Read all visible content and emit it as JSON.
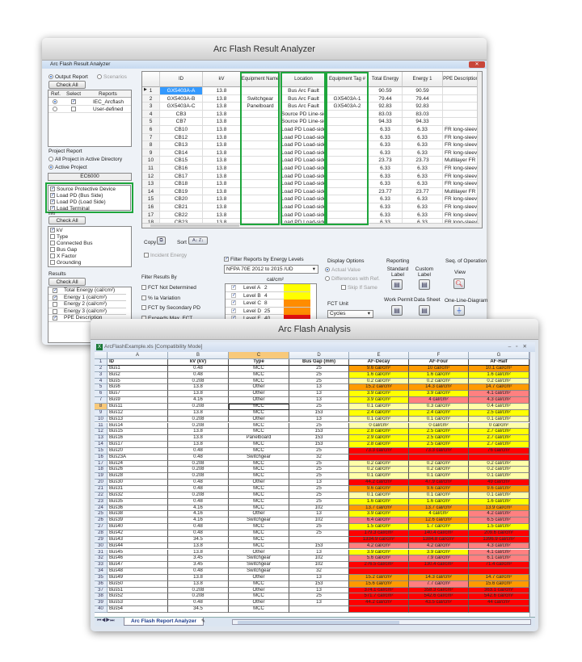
{
  "analyzer": {
    "outer_title": "Arc Flash Result Analyzer",
    "inner_title": "Arc Flash Result Analyzer",
    "output_report": "Output Report",
    "scenarios": "Scenarios",
    "check_all": "Check All",
    "reports_headers": [
      "Ref.",
      "Select",
      "Reports"
    ],
    "reports": [
      {
        "name": "IEC_Arcflash",
        "ref": true,
        "select": true
      },
      {
        "name": "User-defined",
        "ref": false,
        "select": false
      }
    ],
    "project_report": "Project Report",
    "all_project": "All Project in Active Directory",
    "active_project": "Active Project",
    "project_name": "EC6000",
    "locations": [
      "Source Protective Device",
      "Load PD (Bus Side)",
      "Load PD (Load Side)",
      "Load Terminal"
    ],
    "info_label": "Info",
    "info_items": [
      {
        "label": "kV",
        "checked": true
      },
      {
        "label": "Type",
        "checked": false
      },
      {
        "label": "Connected Bus",
        "checked": false
      },
      {
        "label": "Bus Gap",
        "checked": false
      },
      {
        "label": "X Factor",
        "checked": false
      },
      {
        "label": "Grounding",
        "checked": false
      }
    ],
    "results_label": "Results",
    "results_items": [
      {
        "label": "Total Energy (cal/cm²)",
        "checked": true
      },
      {
        "label": "Energy 1 (cal/cm²)",
        "checked": true
      },
      {
        "label": "Energy 2 (cal/cm²)",
        "checked": false
      },
      {
        "label": "Energy 3 (cal/cm²)",
        "checked": false
      },
      {
        "label": "PPE Description",
        "checked": true
      }
    ],
    "grid_headers": [
      "ID",
      "kV",
      "Equipment Name",
      "Location",
      "Equipment Tag #",
      "Total Energy",
      "Energy 1",
      "PPE Description"
    ],
    "grid_rows": [
      [
        "1",
        "GX5403A-A",
        "13.8",
        "",
        "Bus Arc Fault",
        "",
        "90.59",
        "90.59",
        ""
      ],
      [
        "2",
        "GX5403A-B",
        "13.8",
        "Switchgear",
        "Bus Arc Fault",
        "GX5403A-1",
        "79.44",
        "79.44",
        ""
      ],
      [
        "3",
        "GX5403A-C",
        "13.8",
        "Panelboard",
        "Bus Arc Fault",
        "GX5403A-2",
        "92.83",
        "92.83",
        ""
      ],
      [
        "4",
        "CB3",
        "13.8",
        "",
        "Source PD Line-side",
        "",
        "83.03",
        "83.03",
        ""
      ],
      [
        "5",
        "CB7",
        "13.8",
        "",
        "Source PD Line-side",
        "",
        "94.33",
        "94.33",
        ""
      ],
      [
        "6",
        "CB10",
        "13.8",
        "",
        "Load PD Load-side",
        "",
        "6.33",
        "6.33",
        "FR long-sleeve"
      ],
      [
        "7",
        "CB12",
        "13.8",
        "",
        "Load PD Load-side",
        "",
        "6.33",
        "6.33",
        "FR long-sleeve"
      ],
      [
        "8",
        "CB13",
        "13.8",
        "",
        "Load PD Load-side",
        "",
        "6.33",
        "6.33",
        "FR long-sleeve"
      ],
      [
        "9",
        "CB14",
        "13.8",
        "",
        "Load PD Load-side",
        "",
        "6.33",
        "6.33",
        "FR long-sleeve"
      ],
      [
        "10",
        "CB15",
        "13.8",
        "",
        "Load PD Load-side",
        "",
        "23.73",
        "23.73",
        "Multilayer FR fl."
      ],
      [
        "11",
        "CB16",
        "13.8",
        "",
        "Load PD Load-side",
        "",
        "6.33",
        "6.33",
        "FR long-sleeve"
      ],
      [
        "12",
        "CB17",
        "13.8",
        "",
        "Load PD Load-side",
        "",
        "6.33",
        "6.33",
        "FR long-sleeve"
      ],
      [
        "13",
        "CB18",
        "13.8",
        "",
        "Load PD Load-side",
        "",
        "6.33",
        "6.33",
        "FR long-sleeve"
      ],
      [
        "14",
        "CB19",
        "13.8",
        "",
        "Load PD Load-side",
        "",
        "23.77",
        "23.77",
        "Multilayer FR fl."
      ],
      [
        "15",
        "CB20",
        "13.8",
        "",
        "Load PD Load-side",
        "",
        "6.33",
        "6.33",
        "FR long-sleeve"
      ],
      [
        "16",
        "CB21",
        "13.8",
        "",
        "Load PD Load-side",
        "",
        "6.33",
        "6.33",
        "FR long-sleeve"
      ],
      [
        "17",
        "CB22",
        "13.8",
        "",
        "Load PD Load-side",
        "",
        "6.33",
        "6.33",
        "FR long-sleeve"
      ],
      [
        "18",
        "CB23",
        "13.8",
        "",
        "Load PD Load-side",
        "",
        "6.33",
        "6.33",
        "FR long-sleeve"
      ]
    ],
    "copy": "Copy",
    "sort": "Sort",
    "incident_energy": "Incident Energy",
    "filter_results_by": "Filter Results By",
    "filters": [
      "FCT Not Determined",
      "% Ia Variation",
      "FCT by Secondary PD",
      "Exceeds Max. FCT"
    ],
    "filter_energy": "Filter Reports by Energy Levels",
    "energy_standard": "NFPA 70E 2012 to 2015 /UD",
    "energy_unit": "cal/cm²",
    "levels": [
      {
        "name": "Level A",
        "value": "2",
        "color": "#ffff00"
      },
      {
        "name": "Level B",
        "value": "4",
        "color": "#ffff00"
      },
      {
        "name": "Level C",
        "value": "8",
        "color": "#ff8c00"
      },
      {
        "name": "Level D",
        "value": "25",
        "color": "#ff8c00"
      },
      {
        "name": "Level E",
        "value": "40",
        "color": "#ee1111"
      }
    ],
    "display_options": "Display Options",
    "actual_value": "Actual Value",
    "diff_ref": "Differences with Ref.",
    "skip_same": "Skip If Same",
    "fct_unit": "FCT Unit",
    "fct_value": "Cycles",
    "reporting": "Reporting",
    "standard_label": "Standard Label",
    "custom_label": "Custom Label",
    "work_permit": "Work Permit",
    "data_sheet": "Data Sheet",
    "seq_op": "Seq. of Operation",
    "view": "View",
    "one_line": "One-Line-Diagram"
  },
  "analysis": {
    "outer_title": "Arc Flash Analysis",
    "file_title": "ArcFlashExample.xls  [Compatibility Mode]",
    "columns": [
      "A",
      "B",
      "C",
      "D",
      "E",
      "F",
      "G"
    ],
    "headers": [
      "ID",
      "kV (kV)",
      "Type",
      "Bus Gap (mm)",
      "AF-Decay",
      "AF-Four",
      "AF-Half"
    ],
    "sheet_tab": "Arc Flash Report Analyzer",
    "rows": [
      [
        "Bus1",
        "0.48",
        "MCC",
        "25",
        "9.6 cal/cm²",
        "10 cal/cm²",
        "10.1 cal/cm²",
        "ooo"
      ],
      [
        "Bus2",
        "0.48",
        "MCC",
        "25",
        "1.6 cal/cm²",
        "1.6 cal/cm²",
        "1.6 cal/cm²",
        "yyy"
      ],
      [
        "Bus5",
        "0.208",
        "MCC",
        "25",
        "0.2 cal/cm²",
        "0.2 cal/cm²",
        "0.2 cal/cm²",
        "ppp"
      ],
      [
        "Bus6",
        "13.8",
        "Other",
        "13",
        "15.2 cal/cm²",
        "14.3 cal/cm²",
        "14.7 cal/cm²",
        "ooo"
      ],
      [
        "Bus7",
        "13.8",
        "Other",
        "13",
        "3.9 cal/cm²",
        "3.9 cal/cm²",
        "4.1 cal/cm²",
        "yyk"
      ],
      [
        "Bus9",
        "4.16",
        "Other",
        "13",
        "3.9 cal/cm²",
        "4 cal/cm²",
        "4.3 cal/cm²",
        "ykk"
      ],
      [
        "Bus11",
        "0.208",
        "MCC",
        "25",
        "0.1 cal/cm²",
        "0.3 cal/cm²",
        "0.4 cal/cm²",
        "ppp"
      ],
      [
        "Bus12",
        "13.8",
        "MCC",
        "153",
        "2.4 cal/cm²",
        "2.4 cal/cm²",
        "2.5 cal/cm²",
        "yyy"
      ],
      [
        "Bus13",
        "0.208",
        "Other",
        "13",
        "0.1 cal/cm²",
        "0.1 cal/cm²",
        "0.1 cal/cm²",
        "ppp"
      ],
      [
        "Bus14",
        "0.208",
        "MCC",
        "25",
        "0 cal/cm²",
        "0 cal/cm²",
        "0 cal/cm²",
        "ppp"
      ],
      [
        "Bus15",
        "13.8",
        "MCC",
        "153",
        "2.8 cal/cm²",
        "2.5 cal/cm²",
        "2.7 cal/cm²",
        "yyy"
      ],
      [
        "Bus16",
        "13.8",
        "Panelboard",
        "153",
        "2.9 cal/cm²",
        "2.5 cal/cm²",
        "2.7 cal/cm²",
        "yyy"
      ],
      [
        "Bus17",
        "13.8",
        "MCC",
        "153",
        "2.8 cal/cm²",
        "2.5 cal/cm²",
        "2.7 cal/cm²",
        "yyy"
      ],
      [
        "Bus20",
        "0.48",
        "MCC",
        "25",
        "73.3 cal/cm²",
        "73.3 cal/cm²",
        "76 cal/cm²",
        "rrr"
      ],
      [
        "Bus23A",
        "0.48",
        "Switchgear",
        "32",
        "",
        "",
        "",
        "rrr"
      ],
      [
        "Bus24",
        "0.208",
        "MCC",
        "25",
        "0.2 cal/cm²",
        "0.2 cal/cm²",
        "0.2 cal/cm²",
        "ppp"
      ],
      [
        "Bus26",
        "0.208",
        "MCC",
        "25",
        "0.2 cal/cm²",
        "0.2 cal/cm²",
        "0.2 cal/cm²",
        "ppp"
      ],
      [
        "Bus28",
        "0.208",
        "MCC",
        "25",
        "0.1 cal/cm²",
        "0.1 cal/cm²",
        "0.1 cal/cm²",
        "ppp"
      ],
      [
        "Bus30",
        "0.48",
        "Other",
        "13",
        "44.2 cal/cm²",
        "47.9 cal/cm²",
        "49 cal/cm²",
        "rrr"
      ],
      [
        "Bus31",
        "0.48",
        "MCC",
        "25",
        "9.6 cal/cm²",
        "9.6 cal/cm²",
        "9.6 cal/cm²",
        "ooo"
      ],
      [
        "Bus32",
        "0.208",
        "MCC",
        "25",
        "0.1 cal/cm²",
        "0.1 cal/cm²",
        "0.1 cal/cm²",
        "ppp"
      ],
      [
        "Bus35",
        "0.48",
        "MCC",
        "25",
        "1.6 cal/cm²",
        "1.6 cal/cm²",
        "1.6 cal/cm²",
        "yyy"
      ],
      [
        "Bus36",
        "4.16",
        "MCC",
        "102",
        "13.7 cal/cm²",
        "13.7 cal/cm²",
        "13.9 cal/cm²",
        "ooo"
      ],
      [
        "Bus38",
        "4.16",
        "Other",
        "13",
        "3.9 cal/cm²",
        "4 cal/cm²",
        "4.2 cal/cm²",
        "yyk"
      ],
      [
        "Bus39",
        "4.16",
        "Switchgear",
        "102",
        "6.4 cal/cm²",
        "12.6 cal/cm²",
        "6.5 cal/cm²",
        "kok"
      ],
      [
        "Bus40",
        "0.48",
        "MCC",
        "25",
        "1.5 cal/cm²",
        "1.7 cal/cm²",
        "1.5 cal/cm²",
        "yyy"
      ],
      [
        "Bus42",
        "0.48",
        "MCC",
        "25",
        "179.3 cal/cm²",
        "140.4 cal/cm²",
        "209.6 cal/cm²",
        "rrr"
      ],
      [
        "Bus43",
        "34.5",
        "MCC",
        "",
        "1334.9 cal/cm²",
        "1384.8 cal/cm²",
        "1396.9 cal/cm²",
        "rrr"
      ],
      [
        "Bus44",
        "13.8",
        "MCC",
        "153",
        "4.2 cal/cm²",
        "4.2 cal/cm²",
        "4.3 cal/cm²",
        "kkk"
      ],
      [
        "Bus45",
        "13.8",
        "Other",
        "13",
        "3.9 cal/cm²",
        "3.9 cal/cm²",
        "4.1 cal/cm²",
        "yyk"
      ],
      [
        "Bus46",
        "3.45",
        "Switchgear",
        "102",
        "5.6 cal/cm²",
        "7.9 cal/cm²",
        "6.1 cal/cm²",
        "kkk"
      ],
      [
        "Bus47",
        "3.45",
        "Switchgear",
        "102",
        "276.5 cal/cm²",
        "130.4 cal/cm²",
        "71.4 cal/cm²",
        "rrr"
      ],
      [
        "Bus48",
        "0.48",
        "Switchgear",
        "32",
        "",
        "",
        "",
        "rrr"
      ],
      [
        "Bus49",
        "13.8",
        "Other",
        "13",
        "15.2 cal/cm²",
        "14.3 cal/cm²",
        "14.7 cal/cm²",
        "ooo"
      ],
      [
        "Bus50",
        "13.8",
        "MCC",
        "153",
        "15.6 cal/cm²",
        "7.7 cal/cm²",
        "15.6 cal/cm²",
        "oko"
      ],
      [
        "Bus51",
        "0.208",
        "Other",
        "13",
        "374.1 cal/cm²",
        "358.3 cal/cm²",
        "363.1 cal/cm²",
        "rrr"
      ],
      [
        "Bus52",
        "0.208",
        "MCC",
        "25",
        "571.7 cal/cm²",
        "542.6 cal/cm²",
        "542.6 cal/cm²",
        "rrr"
      ],
      [
        "Bus53",
        "0.48",
        "Other",
        "13",
        "44.2 cal/cm²",
        "43.5 cal/cm²",
        "44 cal/cm²",
        "rrr"
      ],
      [
        "Bus54",
        "34.5",
        "MCC",
        "",
        "",
        "",
        "",
        "rrr"
      ]
    ]
  }
}
